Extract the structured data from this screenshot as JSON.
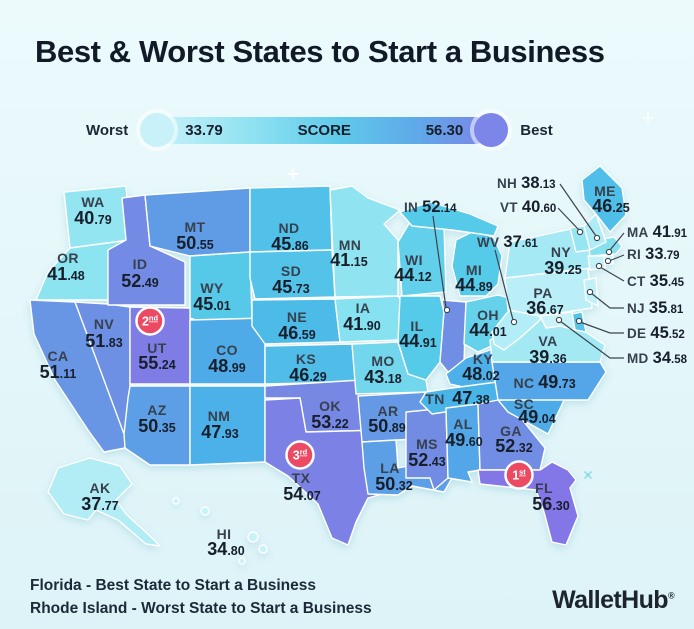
{
  "title": "Best & Worst States to Start a Business",
  "legend": {
    "worst_label": "Worst",
    "best_label": "Best",
    "min_label": "33.79",
    "max_label": "56.30",
    "score_label": "SCORE",
    "min_color": "#c9f1f9",
    "max_color": "#7b86e8"
  },
  "chart_data": {
    "type": "heatmap",
    "subtype": "us-state-choropleth",
    "title": "Best & Worst States to Start a Business",
    "value_label": "SCORE",
    "score_range": [
      33.79,
      56.3
    ],
    "legend_position": "top",
    "states": [
      {
        "abbr": "WA",
        "value": 40.79
      },
      {
        "abbr": "OR",
        "value": 41.48
      },
      {
        "abbr": "CA",
        "value": 51.11
      },
      {
        "abbr": "NV",
        "value": 51.83
      },
      {
        "abbr": "ID",
        "value": 52.49
      },
      {
        "abbr": "MT",
        "value": 50.55
      },
      {
        "abbr": "WY",
        "value": 45.01
      },
      {
        "abbr": "UT",
        "value": 55.24,
        "rank": 2
      },
      {
        "abbr": "CO",
        "value": 48.99
      },
      {
        "abbr": "AZ",
        "value": 50.35
      },
      {
        "abbr": "NM",
        "value": 47.93
      },
      {
        "abbr": "ND",
        "value": 45.86
      },
      {
        "abbr": "SD",
        "value": 45.73
      },
      {
        "abbr": "NE",
        "value": 46.59
      },
      {
        "abbr": "KS",
        "value": 46.29
      },
      {
        "abbr": "OK",
        "value": 53.22
      },
      {
        "abbr": "TX",
        "value": 54.07,
        "rank": 3
      },
      {
        "abbr": "MN",
        "value": 41.15
      },
      {
        "abbr": "IA",
        "value": 41.9
      },
      {
        "abbr": "MO",
        "value": 43.18
      },
      {
        "abbr": "AR",
        "value": 50.89
      },
      {
        "abbr": "LA",
        "value": 50.32
      },
      {
        "abbr": "WI",
        "value": 44.12
      },
      {
        "abbr": "IL",
        "value": 44.91
      },
      {
        "abbr": "MS",
        "value": 52.43
      },
      {
        "abbr": "MI",
        "value": 44.89
      },
      {
        "abbr": "IN",
        "value": 52.14
      },
      {
        "abbr": "OH",
        "value": 44.01
      },
      {
        "abbr": "KY",
        "value": 48.02
      },
      {
        "abbr": "TN",
        "value": 47.38
      },
      {
        "abbr": "AL",
        "value": 49.6
      },
      {
        "abbr": "GA",
        "value": 52.32
      },
      {
        "abbr": "FL",
        "value": 56.3,
        "rank": 1
      },
      {
        "abbr": "SC",
        "value": 49.04
      },
      {
        "abbr": "NC",
        "value": 49.73
      },
      {
        "abbr": "VA",
        "value": 39.36
      },
      {
        "abbr": "WV",
        "value": 37.61
      },
      {
        "abbr": "PA",
        "value": 36.67
      },
      {
        "abbr": "NY",
        "value": 39.25
      },
      {
        "abbr": "NJ",
        "value": 35.81
      },
      {
        "abbr": "DE",
        "value": 45.52
      },
      {
        "abbr": "MD",
        "value": 34.58
      },
      {
        "abbr": "CT",
        "value": 35.45
      },
      {
        "abbr": "RI",
        "value": 33.79
      },
      {
        "abbr": "MA",
        "value": 41.91
      },
      {
        "abbr": "VT",
        "value": 40.6
      },
      {
        "abbr": "NH",
        "value": 38.13
      },
      {
        "abbr": "ME",
        "value": 46.25
      },
      {
        "abbr": "AK",
        "value": 37.77
      },
      {
        "abbr": "HI",
        "value": 34.8
      }
    ]
  },
  "badges": [
    {
      "label": "1st",
      "num": "1",
      "suffix": "st",
      "state_abbr": "FL",
      "color": "#eb4a62"
    },
    {
      "label": "2nd",
      "num": "2",
      "suffix": "nd",
      "state_abbr": "UT",
      "color": "#eb4a62"
    },
    {
      "label": "3rd",
      "num": "3",
      "suffix": "rd",
      "state_abbr": "TX",
      "color": "#eb4a62"
    }
  ],
  "footer": {
    "lines": [
      {
        "state": "Florida",
        "rest": " - Best State to Start a Business"
      },
      {
        "state": "Rhode Island",
        "rest": " - Worst State to Start a Business"
      }
    ]
  },
  "brand": {
    "name": "WalletHub",
    "mark": "®"
  }
}
